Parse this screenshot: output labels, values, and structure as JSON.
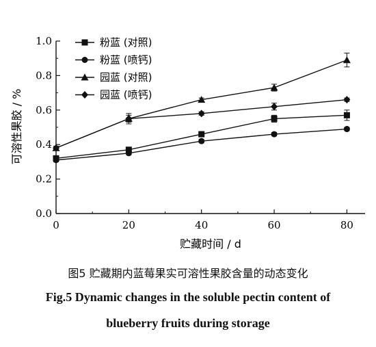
{
  "chart_data": {
    "type": "line",
    "xlabel": "贮藏时间 / d",
    "ylabel": "可溶性果胶 / %",
    "x": [
      0,
      20,
      40,
      60,
      80
    ],
    "x_ticks": [
      "0",
      "20",
      "40",
      "60",
      "80"
    ],
    "y_ticks": [
      "0.0",
      "0.2",
      "0.4",
      "0.6",
      "0.8",
      "1.0"
    ],
    "xlim": [
      0,
      85
    ],
    "ylim": [
      0,
      1.0
    ],
    "grid": false,
    "legend_position": "top-left",
    "series": [
      {
        "name": "粉蓝 (对照)",
        "marker": "square",
        "values": [
          0.32,
          0.37,
          0.46,
          0.55,
          0.57
        ],
        "errors": [
          0.01,
          0.01,
          0.01,
          0.02,
          0.03
        ]
      },
      {
        "name": "粉蓝 (喷钙)",
        "marker": "circle",
        "values": [
          0.31,
          0.35,
          0.42,
          0.46,
          0.49
        ],
        "errors": [
          0.01,
          0.01,
          0.01,
          0.01,
          0.01
        ]
      },
      {
        "name": "园蓝 (对照)",
        "marker": "triangle",
        "values": [
          0.38,
          0.55,
          0.66,
          0.73,
          0.89
        ],
        "errors": [
          0.01,
          0.02,
          0.01,
          0.02,
          0.04
        ]
      },
      {
        "name": "园蓝 (喷钙)",
        "marker": "diamond",
        "values": [
          0.38,
          0.55,
          0.58,
          0.62,
          0.66
        ],
        "errors": [
          0.01,
          0.03,
          0.01,
          0.02,
          0.01
        ]
      }
    ]
  },
  "caption": {
    "cn": "图5 贮藏期内蓝莓果实可溶性果胶含量的动态变化",
    "en_line1": "Fig.5 Dynamic changes in the soluble pectin content of",
    "en_line2": "blueberry fruits during storage"
  }
}
